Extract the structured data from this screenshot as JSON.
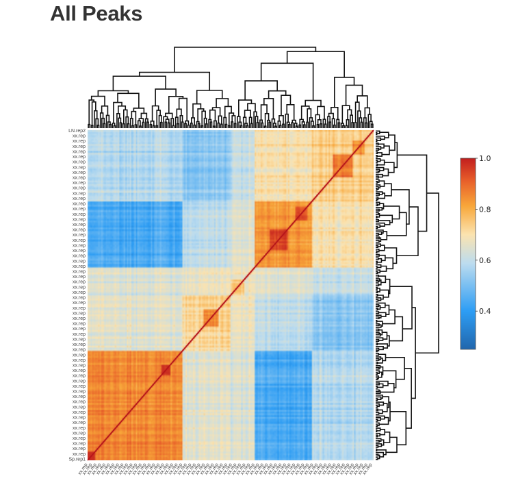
{
  "page": {
    "title": "All Peaks"
  },
  "chart_data": {
    "type": "heatmap",
    "title": "All Peaks",
    "xlabel": "",
    "ylabel": "",
    "n_samples": 190,
    "row_labels_legible": {
      "top": "LN.rep2",
      "bottom": "Sp.rep1"
    },
    "colorscale": {
      "range": [
        0.25,
        1.0
      ],
      "stops": [
        [
          0.0,
          "#2166ac"
        ],
        [
          0.2,
          "#2d9df4"
        ],
        [
          0.45,
          "#bcdcef"
        ],
        [
          0.6,
          "#fbe3b0"
        ],
        [
          0.75,
          "#f8a73a"
        ],
        [
          0.88,
          "#e8602a"
        ],
        [
          1.0,
          "#c21e1e"
        ]
      ],
      "ticks": [
        0.4,
        0.6,
        0.8,
        1.0
      ],
      "tick_labels": [
        "0.4",
        "0.6",
        "0.8",
        "1.0"
      ],
      "placement": "right"
    },
    "dendrograms": [
      "top",
      "right"
    ],
    "grid": false,
    "description_of_values": "pairwise correlation of samples; diagonal = 1.0; block structure of correlated sample groups"
  }
}
